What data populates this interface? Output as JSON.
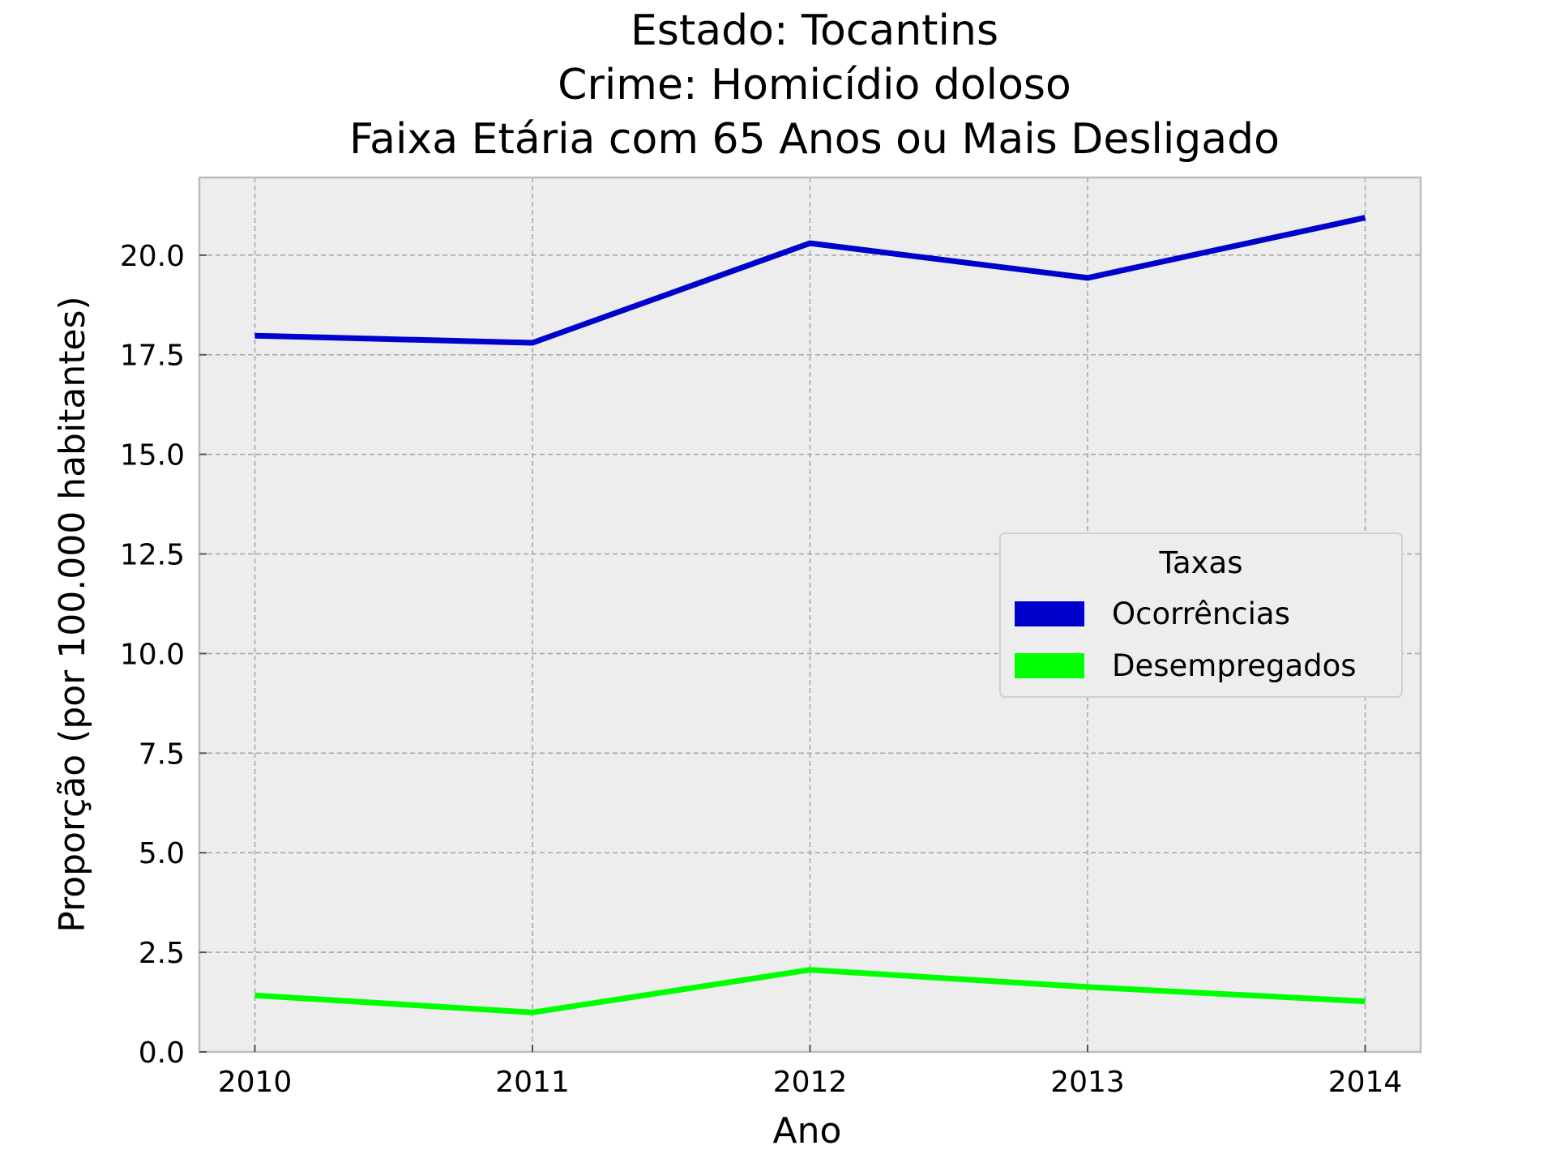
{
  "chart_data": {
    "type": "line",
    "title_lines": [
      "Estado: Tocantins",
      "Crime: Homicídio doloso",
      "Faixa Etária com 65 Anos ou Mais   Desligado"
    ],
    "xlabel": "Ano",
    "ylabel": "Proporção (por 100.000 habitantes)",
    "x": [
      2010,
      2011,
      2012,
      2013,
      2014
    ],
    "x_tick_labels": [
      "2010",
      "2011",
      "2012",
      "2013",
      "2014"
    ],
    "xlim": [
      2009.8,
      2014.2
    ],
    "ylim": [
      0,
      21.95
    ],
    "y_ticks": [
      0,
      2.5,
      5,
      7.5,
      10,
      12.5,
      15,
      17.5,
      20
    ],
    "y_tick_labels": [
      "0.0",
      "2.5",
      "5.0",
      "7.5",
      "10.0",
      "12.5",
      "15.0",
      "17.5",
      "20.0"
    ],
    "grid": true,
    "legend": {
      "title": "Taxas",
      "position": "center-right"
    },
    "series": [
      {
        "name": "Ocorrências",
        "color": "#0000CD",
        "values": [
          17.98,
          17.8,
          20.3,
          19.43,
          20.94
        ]
      },
      {
        "name": "Desempregados",
        "color": "#00FF00",
        "values": [
          1.42,
          0.99,
          2.06,
          1.63,
          1.27
        ]
      }
    ]
  },
  "colors": {
    "plot_background": "#EDEDED",
    "grid": "#A8A8A8",
    "frame": "#BDBDBD"
  }
}
